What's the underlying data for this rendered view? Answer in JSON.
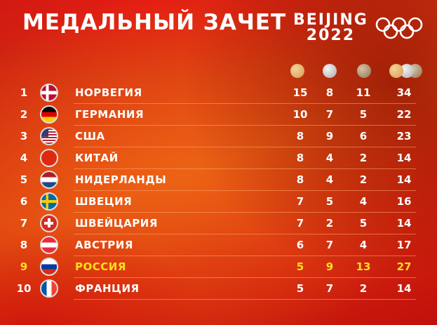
{
  "title": "МЕДАЛЬНЫЙ ЗАЧЕТ",
  "logo": {
    "line1": "BEIJING",
    "line2": "2022",
    "emblem": "olympic-rings"
  },
  "columns": [
    {
      "icon": "gold-medal-icon"
    },
    {
      "icon": "silver-medal-icon"
    },
    {
      "icon": "bronze-medal-icon"
    },
    {
      "icon": "total-medals-icon"
    }
  ],
  "highlight_color": "#ffe01a",
  "rows": [
    {
      "rank": "1",
      "country": "НОРВЕГИЯ",
      "flag": "norway",
      "gold": "15",
      "silver": "8",
      "bronze": "11",
      "total": "34"
    },
    {
      "rank": "2",
      "country": "ГЕРМАНИЯ",
      "flag": "germany",
      "gold": "10",
      "silver": "7",
      "bronze": "5",
      "total": "22"
    },
    {
      "rank": "3",
      "country": "США",
      "flag": "usa",
      "gold": "8",
      "silver": "9",
      "bronze": "6",
      "total": "23"
    },
    {
      "rank": "4",
      "country": "КИТАЙ",
      "flag": "china",
      "gold": "8",
      "silver": "4",
      "bronze": "2",
      "total": "14"
    },
    {
      "rank": "5",
      "country": "НИДЕРЛАНДЫ",
      "flag": "netherlands",
      "gold": "8",
      "silver": "4",
      "bronze": "2",
      "total": "14"
    },
    {
      "rank": "6",
      "country": "ШВЕЦИЯ",
      "flag": "sweden",
      "gold": "7",
      "silver": "5",
      "bronze": "4",
      "total": "16"
    },
    {
      "rank": "7",
      "country": "ШВЕЙЦАРИЯ",
      "flag": "switzerland",
      "gold": "7",
      "silver": "2",
      "bronze": "5",
      "total": "14"
    },
    {
      "rank": "8",
      "country": "АВСТРИЯ",
      "flag": "austria",
      "gold": "6",
      "silver": "7",
      "bronze": "4",
      "total": "17"
    },
    {
      "rank": "9",
      "country": "РОССИЯ",
      "flag": "russia",
      "gold": "5",
      "silver": "9",
      "bronze": "13",
      "total": "27",
      "highlighted": true
    },
    {
      "rank": "10",
      "country": "ФРАНЦИЯ",
      "flag": "france",
      "gold": "5",
      "silver": "7",
      "bronze": "2",
      "total": "14"
    }
  ]
}
